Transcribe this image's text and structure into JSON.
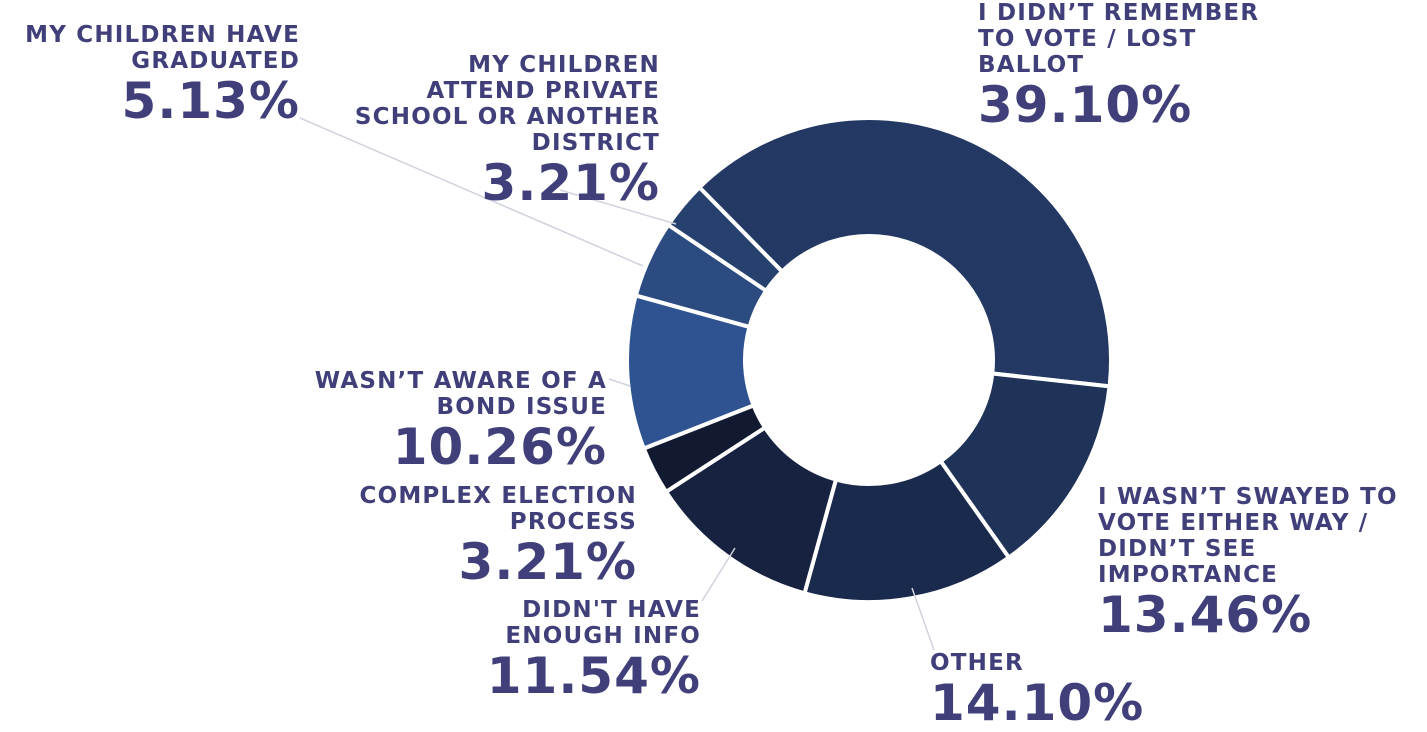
{
  "chart_data": {
    "type": "pie",
    "donut": true,
    "unit": "%",
    "start_angle_deg": -44.5,
    "direction": "clockwise",
    "slices": [
      {
        "key": "forgot",
        "label": [
          "I DIDN’T REMEMBER",
          "TO VOTE / LOST",
          "BALLOT"
        ],
        "value": 39.1,
        "value_label": "39.10%",
        "color": "#233963"
      },
      {
        "key": "not-swayed",
        "label": [
          "I WASN’T SWAYED TO",
          "VOTE EITHER WAY /",
          "DIDN’T SEE",
          "IMPORTANCE"
        ],
        "value": 13.46,
        "value_label": "13.46%",
        "color": "#1f3358"
      },
      {
        "key": "other",
        "label": [
          "OTHER"
        ],
        "value": 14.1,
        "value_label": "14.10%",
        "color": "#1a2a4d"
      },
      {
        "key": "no-info",
        "label": [
          "DIDN'T HAVE",
          "ENOUGH INFO"
        ],
        "value": 11.54,
        "value_label": "11.54%",
        "color": "#172240"
      },
      {
        "key": "complex",
        "label": [
          "COMPLEX ELECTION",
          "PROCESS"
        ],
        "value": 3.21,
        "value_label": "3.21%",
        "color": "#111a30"
      },
      {
        "key": "not-aware",
        "label": [
          "WASN’T AWARE OF A",
          "BOND ISSUE"
        ],
        "value": 10.26,
        "value_label": "10.26%",
        "color": "#2e5390"
      },
      {
        "key": "graduated",
        "label": [
          "MY CHILDREN HAVE",
          "GRADUATED"
        ],
        "value": 5.13,
        "value_label": "5.13%",
        "color": "#2c4b80"
      },
      {
        "key": "private",
        "label": [
          "MY CHILDREN",
          "ATTEND PRIVATE",
          "SCHOOL OR ANOTHER",
          "DISTRICT"
        ],
        "value": 3.21,
        "value_label": "3.21%",
        "color": "#27416f"
      }
    ]
  },
  "colors": {
    "label_text": "#403f7a",
    "leader_line": "#cfd3dd",
    "separator": "#ffffff"
  }
}
